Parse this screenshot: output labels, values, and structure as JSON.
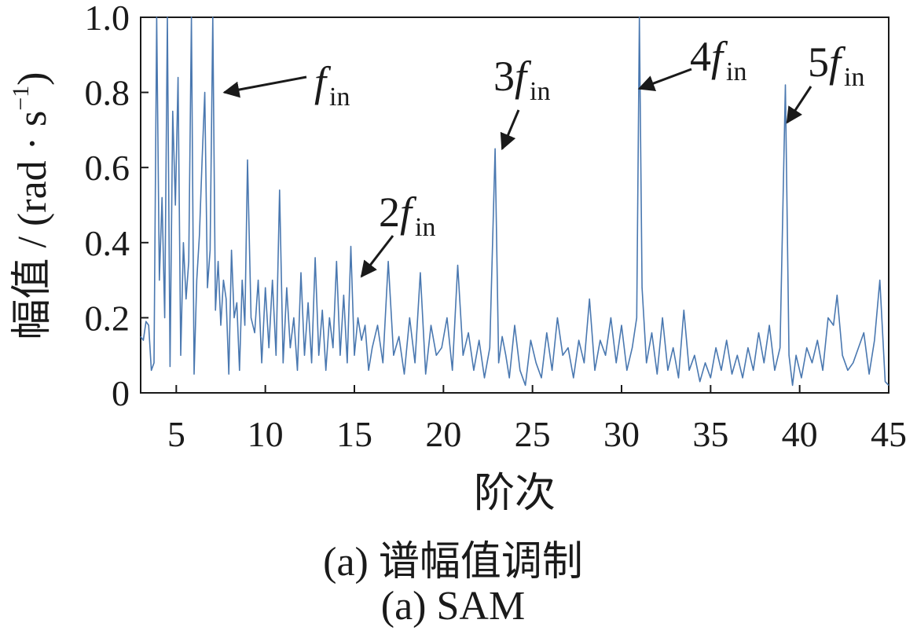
{
  "chart_data": {
    "type": "line",
    "xlabel": "阶次",
    "ylabel_main": "幅值 / (rad · s",
    "ylabel_sup": "−1",
    "ylabel_close": ")",
    "xlim": [
      3,
      45
    ],
    "ylim": [
      0,
      1.0
    ],
    "xticks": [
      5,
      10,
      15,
      20,
      25,
      30,
      35,
      40,
      45
    ],
    "yticks": [
      0,
      0.2,
      0.4,
      0.6,
      0.8,
      1.0
    ],
    "ytick_labels": [
      "0",
      "0.2",
      "0.4",
      "0.6",
      "0.8",
      "1.0"
    ],
    "grid": false,
    "line_color": "#4a78b0",
    "series": [
      {
        "x": [
          3.0,
          3.15,
          3.3,
          3.45,
          3.6,
          3.75,
          3.9,
          4.05,
          4.2,
          4.35,
          4.5,
          4.65,
          4.8,
          4.95,
          5.1,
          5.25,
          5.4,
          5.55,
          5.7,
          5.85,
          6.0,
          6.15,
          6.3,
          6.45,
          6.6,
          6.75,
          6.9,
          7.05,
          7.2,
          7.35,
          7.5,
          7.65,
          7.8,
          7.95,
          8.1,
          8.25,
          8.4,
          8.55,
          8.7,
          8.85,
          9.0,
          9.2,
          9.4,
          9.6,
          9.8,
          10.0,
          10.2,
          10.4,
          10.6,
          10.8,
          11.0,
          11.2,
          11.4,
          11.6,
          11.8,
          12.0,
          12.2,
          12.4,
          12.6,
          12.8,
          13.0,
          13.2,
          13.4,
          13.6,
          13.8,
          14.0,
          14.2,
          14.4,
          14.6,
          14.8,
          15.0,
          15.2,
          15.4,
          15.6,
          15.8,
          16.0,
          16.3,
          16.6,
          16.9,
          17.2,
          17.5,
          17.8,
          18.1,
          18.4,
          18.7,
          19.0,
          19.3,
          19.6,
          19.9,
          20.2,
          20.5,
          20.8,
          21.1,
          21.4,
          21.7,
          22.0,
          22.3,
          22.6,
          22.9,
          23.1,
          23.3,
          23.5,
          23.7,
          24.0,
          24.3,
          24.6,
          24.9,
          25.2,
          25.5,
          25.8,
          26.1,
          26.4,
          26.7,
          27.0,
          27.3,
          27.6,
          27.9,
          28.2,
          28.5,
          28.8,
          29.1,
          29.4,
          29.7,
          30.0,
          30.3,
          30.6,
          30.85,
          31.0,
          31.15,
          31.4,
          31.7,
          32.0,
          32.3,
          32.6,
          32.9,
          33.2,
          33.5,
          33.8,
          34.1,
          34.4,
          34.7,
          35.0,
          35.3,
          35.6,
          35.9,
          36.2,
          36.5,
          36.8,
          37.1,
          37.4,
          37.7,
          38.0,
          38.3,
          38.6,
          38.9,
          39.2,
          39.4,
          39.6,
          39.8,
          40.1,
          40.4,
          40.7,
          41.0,
          41.3,
          41.6,
          41.9,
          42.1,
          42.4,
          42.7,
          43.0,
          43.3,
          43.6,
          43.9,
          44.2,
          44.5,
          44.8,
          45.0
        ],
        "values": [
          0.15,
          0.14,
          0.19,
          0.18,
          0.06,
          0.08,
          1.0,
          0.3,
          0.52,
          0.2,
          1.0,
          0.07,
          0.75,
          0.5,
          0.84,
          0.1,
          0.4,
          0.25,
          0.35,
          1.0,
          0.05,
          0.3,
          0.42,
          0.62,
          0.8,
          0.28,
          0.38,
          1.0,
          0.22,
          0.35,
          0.18,
          0.3,
          0.25,
          0.05,
          0.38,
          0.2,
          0.24,
          0.06,
          0.3,
          0.18,
          0.62,
          0.2,
          0.16,
          0.3,
          0.08,
          0.28,
          0.12,
          0.3,
          0.1,
          0.54,
          0.08,
          0.28,
          0.12,
          0.2,
          0.06,
          0.32,
          0.1,
          0.24,
          0.08,
          0.36,
          0.1,
          0.22,
          0.06,
          0.2,
          0.12,
          0.35,
          0.1,
          0.26,
          0.08,
          0.39,
          0.1,
          0.2,
          0.14,
          0.18,
          0.06,
          0.12,
          0.18,
          0.08,
          0.35,
          0.1,
          0.15,
          0.05,
          0.2,
          0.08,
          0.32,
          0.05,
          0.18,
          0.1,
          0.12,
          0.2,
          0.06,
          0.34,
          0.1,
          0.16,
          0.06,
          0.14,
          0.04,
          0.12,
          0.65,
          0.08,
          0.15,
          0.1,
          0.04,
          0.18,
          0.06,
          0.02,
          0.14,
          0.08,
          0.04,
          0.16,
          0.06,
          0.2,
          0.1,
          0.12,
          0.04,
          0.14,
          0.08,
          0.25,
          0.06,
          0.14,
          0.1,
          0.2,
          0.08,
          0.18,
          0.06,
          0.12,
          0.2,
          1.0,
          0.28,
          0.08,
          0.16,
          0.05,
          0.2,
          0.06,
          0.12,
          0.04,
          0.22,
          0.06,
          0.1,
          0.03,
          0.08,
          0.04,
          0.12,
          0.06,
          0.14,
          0.05,
          0.1,
          0.04,
          0.12,
          0.06,
          0.16,
          0.08,
          0.18,
          0.06,
          0.12,
          0.82,
          0.1,
          0.02,
          0.1,
          0.04,
          0.12,
          0.08,
          0.14,
          0.06,
          0.2,
          0.18,
          0.26,
          0.1,
          0.06,
          0.08,
          0.12,
          0.16,
          0.05,
          0.14,
          0.3,
          0.03,
          0.02
        ]
      }
    ],
    "annotations": [
      {
        "text": "f",
        "sub": "in",
        "arrow_to_x": 7.7,
        "arrow_to_y": 0.8
      },
      {
        "text": "2f",
        "sub": "in",
        "arrow_to_x": 15.4,
        "arrow_to_y": 0.31
      },
      {
        "text": "3f",
        "sub": "in",
        "arrow_to_x": 23.3,
        "arrow_to_y": 0.65
      },
      {
        "text": "4f",
        "sub": "in",
        "arrow_to_x": 31.0,
        "arrow_to_y": 0.81
      },
      {
        "text": "5f",
        "sub": "in",
        "arrow_to_x": 39.3,
        "arrow_to_y": 0.72
      }
    ]
  },
  "captions": {
    "line1": "(a)  谱幅值调制",
    "line2": "(a)  SAM"
  }
}
